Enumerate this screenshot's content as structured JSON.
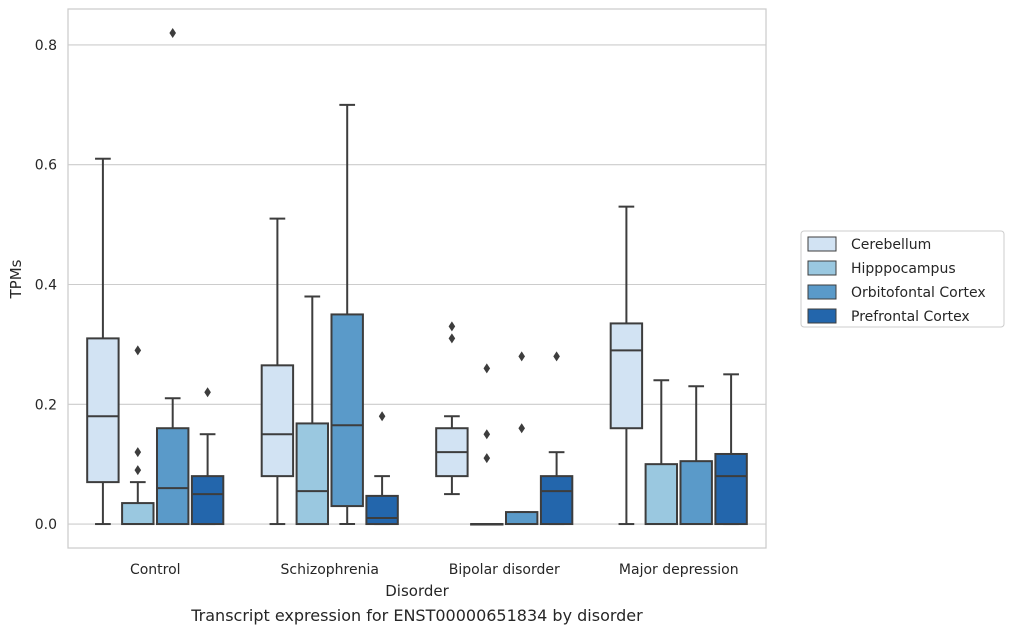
{
  "caption": "Transcript expression for ENST00000651834 by disorder",
  "chart_data": {
    "type": "box",
    "xlabel": "Disorder",
    "ylabel": "TPMs",
    "ylim": [
      -0.04,
      0.86
    ],
    "yticks": [
      0.0,
      0.2,
      0.4,
      0.6,
      0.8
    ],
    "ytick_labels": [
      "0.0",
      "0.2",
      "0.4",
      "0.6",
      "0.8"
    ],
    "grid": "horizontal",
    "legend_position": "right",
    "categories": [
      "Control",
      "Schizophrenia",
      "Bipolar disorder",
      "Major depression"
    ],
    "series": [
      {
        "name": "Cerebellum",
        "color": "#d2e3f3",
        "boxes": [
          {
            "whislo": 0.0,
            "q1": 0.07,
            "med": 0.18,
            "q3": 0.31,
            "whishi": 0.61,
            "fliers": []
          },
          {
            "whislo": 0.0,
            "q1": 0.08,
            "med": 0.15,
            "q3": 0.265,
            "whishi": 0.51,
            "fliers": []
          },
          {
            "whislo": 0.05,
            "q1": 0.08,
            "med": 0.12,
            "q3": 0.16,
            "whishi": 0.18,
            "fliers": [
              0.31,
              0.33
            ]
          },
          {
            "whislo": 0.0,
            "q1": 0.16,
            "med": 0.29,
            "q3": 0.335,
            "whishi": 0.53,
            "fliers": []
          }
        ]
      },
      {
        "name": "Hipppocampus",
        "color": "#9ac8e0",
        "boxes": [
          {
            "whislo": 0.0,
            "q1": 0.0,
            "med": 0.0,
            "q3": 0.035,
            "whishi": 0.07,
            "fliers": [
              0.09,
              0.12,
              0.29
            ]
          },
          {
            "whislo": 0.0,
            "q1": 0.0,
            "med": 0.055,
            "q3": 0.168,
            "whishi": 0.38,
            "fliers": []
          },
          {
            "whislo": 0.0,
            "q1": 0.0,
            "med": 0.0,
            "q3": 0.0,
            "whishi": 0.0,
            "fliers": [
              0.11,
              0.15,
              0.26
            ]
          },
          {
            "whislo": 0.0,
            "q1": 0.0,
            "med": 0.0,
            "q3": 0.1,
            "whishi": 0.24,
            "fliers": []
          }
        ]
      },
      {
        "name": "Orbitofontal Cortex",
        "color": "#5a9ac9",
        "boxes": [
          {
            "whislo": 0.0,
            "q1": 0.0,
            "med": 0.06,
            "q3": 0.16,
            "whishi": 0.21,
            "fliers": [
              0.82
            ]
          },
          {
            "whislo": 0.0,
            "q1": 0.03,
            "med": 0.165,
            "q3": 0.35,
            "whishi": 0.7,
            "fliers": []
          },
          {
            "whislo": 0.0,
            "q1": 0.0,
            "med": 0.0,
            "q3": 0.02,
            "whishi": 0.02,
            "fliers": [
              0.16,
              0.28
            ]
          },
          {
            "whislo": 0.0,
            "q1": 0.0,
            "med": 0.0,
            "q3": 0.105,
            "whishi": 0.23,
            "fliers": []
          }
        ]
      },
      {
        "name": "Prefrontal Cortex",
        "color": "#2366ac",
        "boxes": [
          {
            "whislo": 0.0,
            "q1": 0.0,
            "med": 0.05,
            "q3": 0.08,
            "whishi": 0.15,
            "fliers": [
              0.22
            ]
          },
          {
            "whislo": 0.0,
            "q1": 0.0,
            "med": 0.01,
            "q3": 0.047,
            "whishi": 0.08,
            "fliers": [
              0.18
            ]
          },
          {
            "whislo": 0.0,
            "q1": 0.0,
            "med": 0.055,
            "q3": 0.08,
            "whishi": 0.12,
            "fliers": [
              0.28
            ]
          },
          {
            "whislo": 0.0,
            "q1": 0.0,
            "med": 0.08,
            "q3": 0.117,
            "whishi": 0.25,
            "fliers": []
          }
        ]
      }
    ]
  }
}
